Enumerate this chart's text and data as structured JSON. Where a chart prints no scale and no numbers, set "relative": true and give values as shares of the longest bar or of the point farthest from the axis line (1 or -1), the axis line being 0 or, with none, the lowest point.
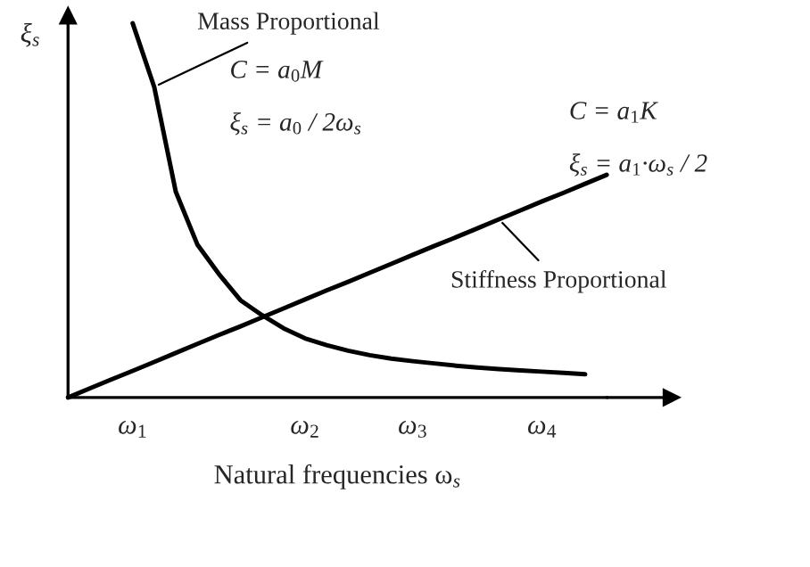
{
  "chart_data": {
    "type": "line",
    "relative": true,
    "xlabel": "Natural frequencies ω$_{s}$",
    "ylabel": "ξ$_{s}$",
    "categories": [
      null,
      null,
      null,
      "ω$_{1}$",
      null,
      null,
      null,
      null,
      null,
      null,
      null,
      "ω$_{2}$",
      null,
      null,
      null,
      null,
      "ω$_{3}$",
      null,
      null,
      null,
      null,
      null,
      "ω$_{4}$",
      null,
      null,
      null
    ],
    "tick_labels": "x",
    "grid": false,
    "legend": false,
    "marker": "none",
    "line_style": "solid",
    "series": [
      {
        "color": "#000000",
        "values": [
          null,
          null,
          null,
          1.0,
          0.83,
          0.55,
          0.409,
          0.33,
          0.26,
          0.22,
          0.185,
          0.158,
          0.14,
          0.125,
          0.113,
          0.104,
          0.097,
          0.091,
          0.085,
          0.08,
          0.076,
          0.072,
          0.069,
          0.066,
          0.062,
          null
        ]
      },
      {
        "color": "#000000",
        "values": [
          0,
          0.024,
          0.048,
          0.071,
          0.095,
          0.119,
          0.143,
          0.167,
          0.19,
          0.214,
          0.238,
          0.262,
          0.286,
          0.309,
          0.333,
          0.357,
          0.381,
          0.405,
          0.428,
          0.452,
          0.476,
          0.5,
          0.524,
          0.547,
          0.571,
          0.595
        ]
      }
    ],
    "annotations": [
      "Mass Proportional",
      "C = a$_{0}$M",
      "ξ$_{s}$ = a$_{0}$ / 2ω$_{s}$",
      "Stiffness Proportional",
      "C = a$_{1}$K",
      "ξ$_{s}$ = a$_{1}$·ω$_{s}$ / 2"
    ]
  }
}
